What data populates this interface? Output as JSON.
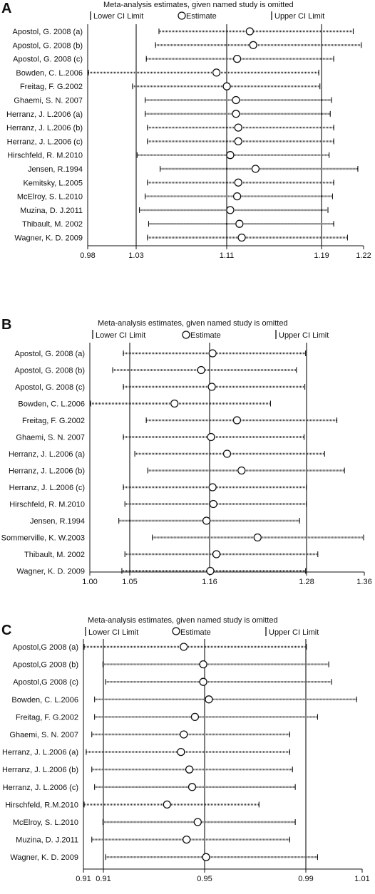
{
  "chart_data": [
    {
      "type": "forest",
      "panel": "A",
      "title": "Meta-analysis estimates, given named study is omitted",
      "legend": [
        "Lower CI Limit",
        "Estimate",
        "Upper CI Limit"
      ],
      "xlim": [
        0.98,
        1.22
      ],
      "xticks": [
        "0.98",
        "1.03",
        "1.11",
        "1.19",
        "1.22"
      ],
      "reference_lines": [
        1.03,
        1.11,
        1.19
      ],
      "studies": [
        {
          "label": "Apostol, G. 2008 (a)",
          "estimate": 1.121,
          "lower": 1.042,
          "upper": 1.211
        },
        {
          "label": "Apostol, G. 2008 (b)",
          "estimate": 1.124,
          "lower": 1.039,
          "upper": 1.218
        },
        {
          "label": "Apostol, G. 2008 (c)",
          "estimate": 1.11,
          "lower": 1.031,
          "upper": 1.194
        },
        {
          "label": "Bowden, C. L.2006",
          "estimate": 1.092,
          "lower": 0.98,
          "upper": 1.181
        },
        {
          "label": "Freitag, F. G.2002",
          "estimate": 1.101,
          "lower": 1.019,
          "upper": 1.182
        },
        {
          "label": "Ghaemi, S. N. 2007",
          "estimate": 1.109,
          "lower": 1.03,
          "upper": 1.192
        },
        {
          "label": "Herranz, J. L.2006 (a)",
          "estimate": 1.109,
          "lower": 1.03,
          "upper": 1.191
        },
        {
          "label": "Herranz, J. L.2006 (b)",
          "estimate": 1.111,
          "lower": 1.032,
          "upper": 1.194
        },
        {
          "label": "Herranz, J. L.2006 (c)",
          "estimate": 1.111,
          "lower": 1.032,
          "upper": 1.194
        },
        {
          "label": "Hirschfeld, R. M.2010",
          "estimate": 1.104,
          "lower": 1.023,
          "upper": 1.19
        },
        {
          "label": "Jensen, R.1994",
          "estimate": 1.126,
          "lower": 1.043,
          "upper": 1.215
        },
        {
          "label": "Kemitsky, L.2005",
          "estimate": 1.111,
          "lower": 1.032,
          "upper": 1.194
        },
        {
          "label": "McElroy, S. L.2010",
          "estimate": 1.11,
          "lower": 1.03,
          "upper": 1.193
        },
        {
          "label": "Muzina, D. J.2011",
          "estimate": 1.104,
          "lower": 1.025,
          "upper": 1.189
        },
        {
          "label": "Thibault, M. 2002",
          "estimate": 1.112,
          "lower": 1.033,
          "upper": 1.194
        },
        {
          "label": "Wagner, K. D. 2009",
          "estimate": 1.114,
          "lower": 1.032,
          "upper": 1.206
        }
      ]
    },
    {
      "type": "forest",
      "panel": "B",
      "title": "Meta-analysis estimates, given named study is omitted",
      "legend": [
        "Lower CI Limit",
        "Estimate",
        "Upper CI Limit"
      ],
      "xlim": [
        1.0,
        1.36
      ],
      "xticks": [
        "1.00",
        "1.05",
        "1.16",
        "1.28",
        "1.36"
      ],
      "reference_lines": [
        1.05,
        1.16,
        1.28
      ],
      "studies": [
        {
          "label": "Apostol, G. 2008 (a)",
          "estimate": 1.161,
          "lower": 1.044,
          "upper": 1.283
        },
        {
          "label": "Apostol, G. 2008 (b)",
          "estimate": 1.146,
          "lower": 1.03,
          "upper": 1.271
        },
        {
          "label": "Apostol, G. 2008 (c)",
          "estimate": 1.16,
          "lower": 1.044,
          "upper": 1.282
        },
        {
          "label": "Bowden, C. L.2006",
          "estimate": 1.111,
          "lower": 0.996,
          "upper": 1.237
        },
        {
          "label": "Freitag, F. G.2002",
          "estimate": 1.193,
          "lower": 1.074,
          "upper": 1.324
        },
        {
          "label": "Ghaemi, S. N. 2007",
          "estimate": 1.159,
          "lower": 1.044,
          "upper": 1.281
        },
        {
          "label": "Herranz, J. L.2006 (a)",
          "estimate": 1.18,
          "lower": 1.059,
          "upper": 1.308
        },
        {
          "label": "Herranz, J. L.2006 (b)",
          "estimate": 1.199,
          "lower": 1.076,
          "upper": 1.334
        },
        {
          "label": "Herranz, J. L.2006 (c)",
          "estimate": 1.161,
          "lower": 1.044,
          "upper": 1.284
        },
        {
          "label": "Hirschfeld, R. M.2010",
          "estimate": 1.162,
          "lower": 1.046,
          "upper": 1.284
        },
        {
          "label": "Jensen, R.1994",
          "estimate": 1.153,
          "lower": 1.038,
          "upper": 1.275
        },
        {
          "label": "Sommerville, K. W.2003",
          "estimate": 1.22,
          "lower": 1.082,
          "upper": 1.36
        },
        {
          "label": "Thibault, M. 2002",
          "estimate": 1.166,
          "lower": 1.046,
          "upper": 1.299
        },
        {
          "label": "Wagner, K. D. 2009",
          "estimate": 1.158,
          "lower": 1.042,
          "upper": 1.283
        }
      ]
    },
    {
      "type": "forest",
      "panel": "C",
      "title": "Meta-analysis estimates, given named study is omitted",
      "legend": [
        "Lower CI Limit",
        "Estimate",
        "Upper CI Limit"
      ],
      "xlim": [
        0.91,
        1.01
      ],
      "xticks": [
        "0.91",
        "0.91",
        "0.95",
        "0.99",
        "1.01"
      ],
      "reference_lines": [
        0.914,
        0.95,
        0.99
      ],
      "studies": [
        {
          "label": "Apostol,G 2008 (a)",
          "estimate": 0.946,
          "lower": 0.91,
          "upper": 0.99
        },
        {
          "label": "Apostol,G 2008 (b)",
          "estimate": 0.953,
          "lower": 0.917,
          "upper": 0.998
        },
        {
          "label": "Apostol,G 2008 (c)",
          "estimate": 0.953,
          "lower": 0.918,
          "upper": 0.999
        },
        {
          "label": "Bowden, C. L.2006",
          "estimate": 0.955,
          "lower": 0.914,
          "upper": 1.008
        },
        {
          "label": "Freitag, F. G.2002",
          "estimate": 0.95,
          "lower": 0.914,
          "upper": 0.994
        },
        {
          "label": "Ghaemi, S. N. 2007",
          "estimate": 0.946,
          "lower": 0.913,
          "upper": 0.984
        },
        {
          "label": "Herranz, J. L.2006 (a)",
          "estimate": 0.945,
          "lower": 0.911,
          "upper": 0.984
        },
        {
          "label": "Herranz, J. L.2006 (b)",
          "estimate": 0.948,
          "lower": 0.913,
          "upper": 0.985
        },
        {
          "label": "Herranz, J. L.2006 (c)",
          "estimate": 0.949,
          "lower": 0.914,
          "upper": 0.986
        },
        {
          "label": "Hirschfeld, R.M.2010",
          "estimate": 0.94,
          "lower": 0.91,
          "upper": 0.973
        },
        {
          "label": "McElroy, S. L.2010",
          "estimate": 0.951,
          "lower": 0.917,
          "upper": 0.986
        },
        {
          "label": "Muzina, D. J.2011",
          "estimate": 0.947,
          "lower": 0.913,
          "upper": 0.984
        },
        {
          "label": "Wagner, K. D. 2009",
          "estimate": 0.954,
          "lower": 0.918,
          "upper": 0.994
        }
      ]
    }
  ]
}
